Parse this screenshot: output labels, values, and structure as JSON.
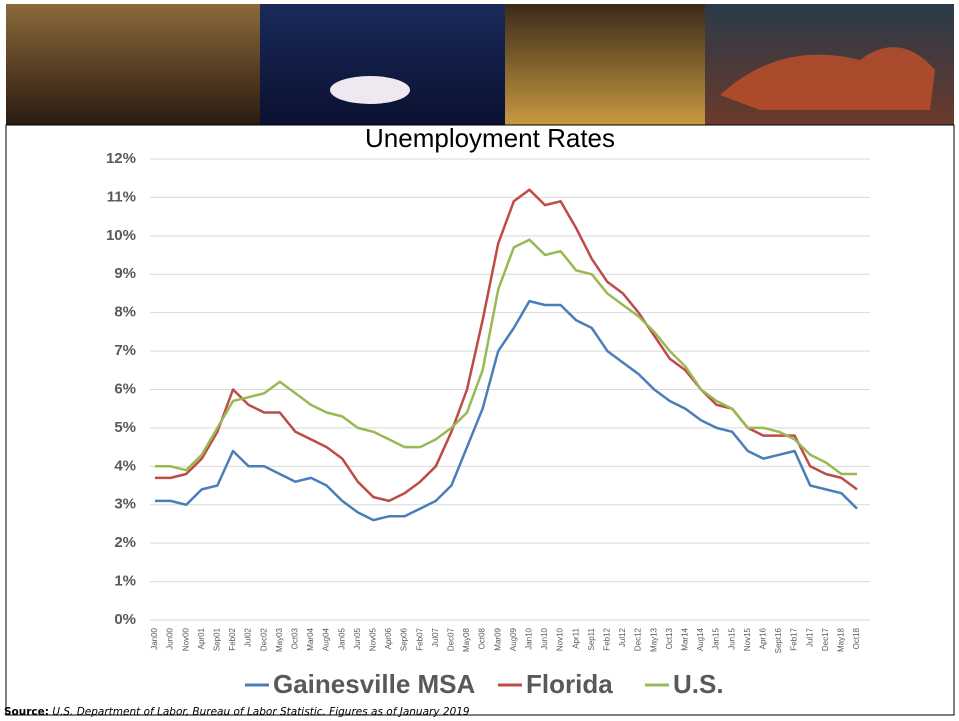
{
  "chart_data": {
    "type": "line",
    "title": "Unemployment Rates",
    "categories": [
      "Jan00",
      "Jun00",
      "Nov00",
      "Apr01",
      "Sep01",
      "Feb02",
      "Jul02",
      "Dec02",
      "May03",
      "Oct03",
      "Mar04",
      "Aug04",
      "Jan05",
      "Jun05",
      "Nov05",
      "Apr06",
      "Sep06",
      "Feb07",
      "Jul07",
      "Dec07",
      "May08",
      "Oct08",
      "Mar09",
      "Aug09",
      "Jan10",
      "Jun10",
      "Nov10",
      "Apr11",
      "Sep11",
      "Feb12",
      "Jul12",
      "Dec12",
      "May13",
      "Oct13",
      "Mar14",
      "Aug14",
      "Jan15",
      "Jun15",
      "Nov15",
      "Apr16",
      "Sept16",
      "Feb17",
      "Jul17",
      "Dec17",
      "May18",
      "Oct18"
    ],
    "series": [
      {
        "name": "Gainesville MSA",
        "color": "#4a7ebb",
        "values": [
          3.1,
          3.1,
          3.0,
          3.4,
          3.5,
          4.4,
          4.0,
          4.0,
          3.8,
          3.6,
          3.7,
          3.5,
          3.1,
          2.8,
          2.6,
          2.7,
          2.7,
          2.9,
          3.1,
          3.5,
          4.5,
          5.5,
          7.0,
          7.6,
          8.3,
          8.2,
          8.2,
          7.8,
          7.6,
          7.0,
          6.7,
          6.4,
          6.0,
          5.7,
          5.5,
          5.2,
          5.0,
          4.9,
          4.4,
          4.2,
          4.3,
          4.4,
          3.5,
          3.4,
          3.3,
          2.9
        ]
      },
      {
        "name": "Florida",
        "color": "#be4b48",
        "values": [
          3.7,
          3.7,
          3.8,
          4.2,
          4.9,
          6.0,
          5.6,
          5.4,
          5.4,
          4.9,
          4.7,
          4.5,
          4.2,
          3.6,
          3.2,
          3.1,
          3.3,
          3.6,
          4.0,
          4.9,
          6.0,
          7.8,
          9.8,
          10.9,
          11.2,
          10.8,
          10.9,
          10.2,
          9.4,
          8.8,
          8.5,
          8.0,
          7.4,
          6.8,
          6.5,
          6.0,
          5.6,
          5.5,
          5.0,
          4.8,
          4.8,
          4.8,
          4.0,
          3.8,
          3.7,
          3.4
        ]
      },
      {
        "name": "U.S.",
        "color": "#98b954",
        "values": [
          4.0,
          4.0,
          3.9,
          4.3,
          5.0,
          5.7,
          5.8,
          5.9,
          6.2,
          5.9,
          5.6,
          5.4,
          5.3,
          5.0,
          4.9,
          4.7,
          4.5,
          4.5,
          4.7,
          5.0,
          5.4,
          6.5,
          8.6,
          9.7,
          9.9,
          9.5,
          9.6,
          9.1,
          9.0,
          8.5,
          8.2,
          7.9,
          7.5,
          7.0,
          6.6,
          6.0,
          5.7,
          5.5,
          5.0,
          5.0,
          4.9,
          4.7,
          4.3,
          4.1,
          3.8,
          3.8
        ]
      }
    ],
    "ylim": [
      0,
      12
    ],
    "yticks": [
      {
        "value": 0,
        "label": "0%"
      },
      {
        "value": 1,
        "label": "1%"
      },
      {
        "value": 2,
        "label": "2%"
      },
      {
        "value": 3,
        "label": "3%"
      },
      {
        "value": 4,
        "label": "4%"
      },
      {
        "value": 5,
        "label": "5%"
      },
      {
        "value": 6,
        "label": "6%"
      },
      {
        "value": 7,
        "label": "7%"
      },
      {
        "value": 8,
        "label": "8%"
      },
      {
        "value": 9,
        "label": "9%"
      },
      {
        "value": 10,
        "label": "10%"
      },
      {
        "value": 11,
        "label": "11%"
      },
      {
        "value": 12,
        "label": "12%"
      }
    ],
    "grid": true,
    "legend_position": "bottom"
  },
  "source": {
    "label": "Source:",
    "text": "U.S. Department of Labor, Bureau of Labor Statistic. Figures as of January 2019"
  }
}
